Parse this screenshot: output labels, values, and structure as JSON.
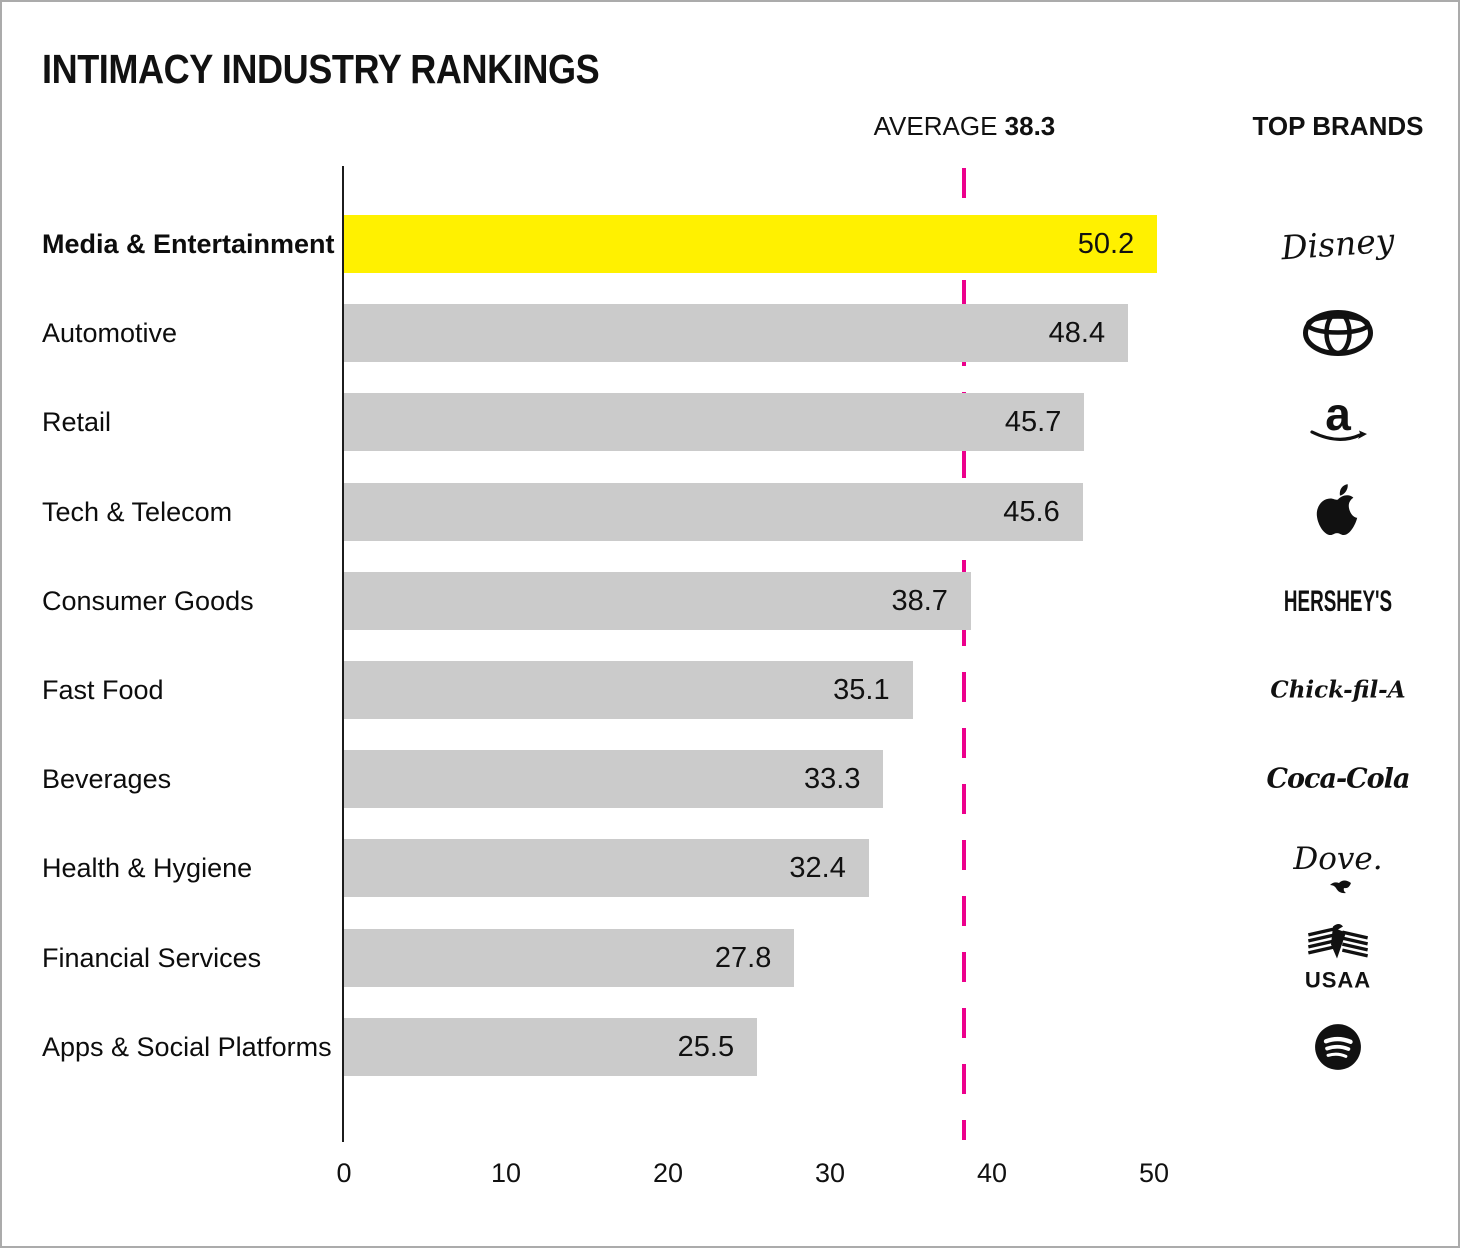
{
  "title": "INTIMACY INDUSTRY RANKINGS",
  "header": {
    "average_label": "AVERAGE",
    "average_value": "38.3",
    "top_brands_label": "TOP BRANDS"
  },
  "chart_data": {
    "type": "bar",
    "orientation": "horizontal",
    "title": "INTIMACY INDUSTRY RANKINGS",
    "categories": [
      "Media & Entertainment",
      "Automotive",
      "Retail",
      "Tech & Telecom",
      "Consumer Goods",
      "Fast Food",
      "Beverages",
      "Health & Hygiene",
      "Financial Services",
      "Apps & Social Platforms"
    ],
    "values": [
      50.2,
      48.4,
      45.7,
      45.6,
      38.7,
      35.1,
      33.3,
      32.4,
      27.8,
      25.5
    ],
    "value_labels": [
      "50.2",
      "48.4",
      "45.7",
      "45.6",
      "38.7",
      "35.1",
      "33.3",
      "32.4",
      "27.8",
      "25.5"
    ],
    "top_brands": [
      "Disney",
      "Toyota",
      "Amazon",
      "Apple",
      "Hershey's",
      "Chick-fil-A",
      "Coca-Cola",
      "Dove",
      "USAA",
      "Spotify"
    ],
    "wordmarks": {
      "disney": "Disney",
      "amazon_a": "a",
      "hersheys": "HERSHEY'S",
      "chickfila": "Chick-fil-A",
      "cocacola": "Coca-Cola",
      "dove": "Dove.",
      "usaa": "USAA"
    },
    "average": 38.3,
    "highlight_index": 0,
    "xticks": [
      0,
      10,
      20,
      30,
      40,
      50
    ],
    "xlim": [
      0,
      55
    ],
    "legend_position": "right",
    "grid": false,
    "colors": {
      "highlight_bar": "#FFF100",
      "bar": "#CBCBCB",
      "average_line": "#EC008C",
      "text": "#111111",
      "frame_border": "#ABABAB"
    }
  }
}
